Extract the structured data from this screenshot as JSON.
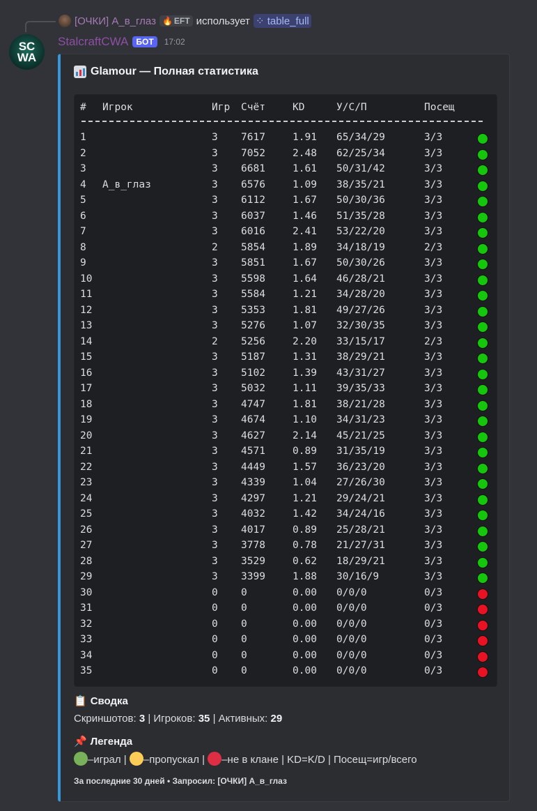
{
  "reply": {
    "user": "[ОЧКИ] А_в_глаз",
    "tag": "EFT",
    "uses": "использует",
    "command": "table_full"
  },
  "message": {
    "author": "StalcraftCWA",
    "avatar_text": [
      "SC",
      "WA"
    ],
    "badge": "БОТ",
    "time": "17:02"
  },
  "embed": {
    "accent_color": "#3498db",
    "title": "Glamour — Полная статистика",
    "title_icon": "bar-chart-icon",
    "table": {
      "headers": [
        "#",
        "Игрок",
        "Игр",
        "Счёт",
        "KD",
        "У/С/П",
        "Посещ"
      ],
      "status_colors": {
        "green": "#16c60c",
        "red": "#e81224",
        "yellow": "#ffc83d"
      },
      "rows": [
        [
          "1",
          "",
          "3",
          "7617",
          "1.91",
          "65/34/29",
          "3/3",
          "green"
        ],
        [
          "2",
          "",
          "3",
          "7052",
          "2.48",
          "62/25/34",
          "3/3",
          "green"
        ],
        [
          "3",
          "",
          "3",
          "6681",
          "1.61",
          "50/31/42",
          "3/3",
          "green"
        ],
        [
          "4",
          "А_в_глаз",
          "3",
          "6576",
          "1.09",
          "38/35/21",
          "3/3",
          "green"
        ],
        [
          "5",
          "",
          "3",
          "6112",
          "1.67",
          "50/30/36",
          "3/3",
          "green"
        ],
        [
          "6",
          "",
          "3",
          "6037",
          "1.46",
          "51/35/28",
          "3/3",
          "green"
        ],
        [
          "7",
          "",
          "3",
          "6016",
          "2.41",
          "53/22/20",
          "3/3",
          "green"
        ],
        [
          "8",
          "",
          "2",
          "5854",
          "1.89",
          "34/18/19",
          "2/3",
          "green"
        ],
        [
          "9",
          "",
          "3",
          "5851",
          "1.67",
          "50/30/26",
          "3/3",
          "green"
        ],
        [
          "10",
          "",
          "3",
          "5598",
          "1.64",
          "46/28/21",
          "3/3",
          "green"
        ],
        [
          "11",
          "",
          "3",
          "5584",
          "1.21",
          "34/28/20",
          "3/3",
          "green"
        ],
        [
          "12",
          "",
          "3",
          "5353",
          "1.81",
          "49/27/26",
          "3/3",
          "green"
        ],
        [
          "13",
          "",
          "3",
          "5276",
          "1.07",
          "32/30/35",
          "3/3",
          "green"
        ],
        [
          "14",
          "",
          "2",
          "5256",
          "2.20",
          "33/15/17",
          "2/3",
          "green"
        ],
        [
          "15",
          "",
          "3",
          "5187",
          "1.31",
          "38/29/21",
          "3/3",
          "green"
        ],
        [
          "16",
          "",
          "3",
          "5102",
          "1.39",
          "43/31/27",
          "3/3",
          "green"
        ],
        [
          "17",
          "",
          "3",
          "5032",
          "1.11",
          "39/35/33",
          "3/3",
          "green"
        ],
        [
          "18",
          "",
          "3",
          "4747",
          "1.81",
          "38/21/28",
          "3/3",
          "green"
        ],
        [
          "19",
          "",
          "3",
          "4674",
          "1.10",
          "34/31/23",
          "3/3",
          "green"
        ],
        [
          "20",
          "",
          "3",
          "4627",
          "2.14",
          "45/21/25",
          "3/3",
          "green"
        ],
        [
          "21",
          "",
          "3",
          "4571",
          "0.89",
          "31/35/19",
          "3/3",
          "green"
        ],
        [
          "22",
          "",
          "3",
          "4449",
          "1.57",
          "36/23/20",
          "3/3",
          "green"
        ],
        [
          "23",
          "",
          "3",
          "4339",
          "1.04",
          "27/26/30",
          "3/3",
          "green"
        ],
        [
          "24",
          "",
          "3",
          "4297",
          "1.21",
          "29/24/21",
          "3/3",
          "green"
        ],
        [
          "25",
          "",
          "3",
          "4032",
          "1.42",
          "34/24/16",
          "3/3",
          "green"
        ],
        [
          "26",
          "",
          "3",
          "4017",
          "0.89",
          "25/28/21",
          "3/3",
          "green"
        ],
        [
          "27",
          "",
          "3",
          "3778",
          "0.78",
          "21/27/31",
          "3/3",
          "green"
        ],
        [
          "28",
          "",
          "3",
          "3529",
          "0.62",
          "18/29/21",
          "3/3",
          "green"
        ],
        [
          "29",
          "",
          "3",
          "3399",
          "1.88",
          "30/16/9",
          "3/3",
          "green"
        ],
        [
          "30",
          "",
          "0",
          "0",
          "0.00",
          "0/0/0",
          "0/3",
          "red"
        ],
        [
          "31",
          "",
          "0",
          "0",
          "0.00",
          "0/0/0",
          "0/3",
          "red"
        ],
        [
          "32",
          "",
          "0",
          "0",
          "0.00",
          "0/0/0",
          "0/3",
          "red"
        ],
        [
          "33",
          "",
          "0",
          "0",
          "0.00",
          "0/0/0",
          "0/3",
          "red"
        ],
        [
          "34",
          "",
          "0",
          "0",
          "0.00",
          "0/0/0",
          "0/3",
          "red"
        ],
        [
          "35",
          "",
          "0",
          "0",
          "0.00",
          "0/0/0",
          "0/3",
          "red"
        ]
      ]
    },
    "summary": {
      "title": "Сводка",
      "icon": "clipboard-icon",
      "screens_label": "Скриншотов:",
      "screens": "3",
      "players_label": "Игроков:",
      "players": "35",
      "active_label": "Активных:",
      "active": "29"
    },
    "legend": {
      "title": "Легенда",
      "icon": "pushpin-icon",
      "played": "–играл",
      "skipped": "–пропускал",
      "not_in_clan": "–не в клане",
      "kd": "KD=K/D",
      "attendance": "Посещ=игр/всего",
      "colors": {
        "played": "#78b159",
        "skipped": "#fdcb58",
        "not_in_clan": "#dd2e44"
      }
    },
    "footer": "За последние 30 дней • Запросил: [ОЧКИ] А_в_глаз"
  }
}
